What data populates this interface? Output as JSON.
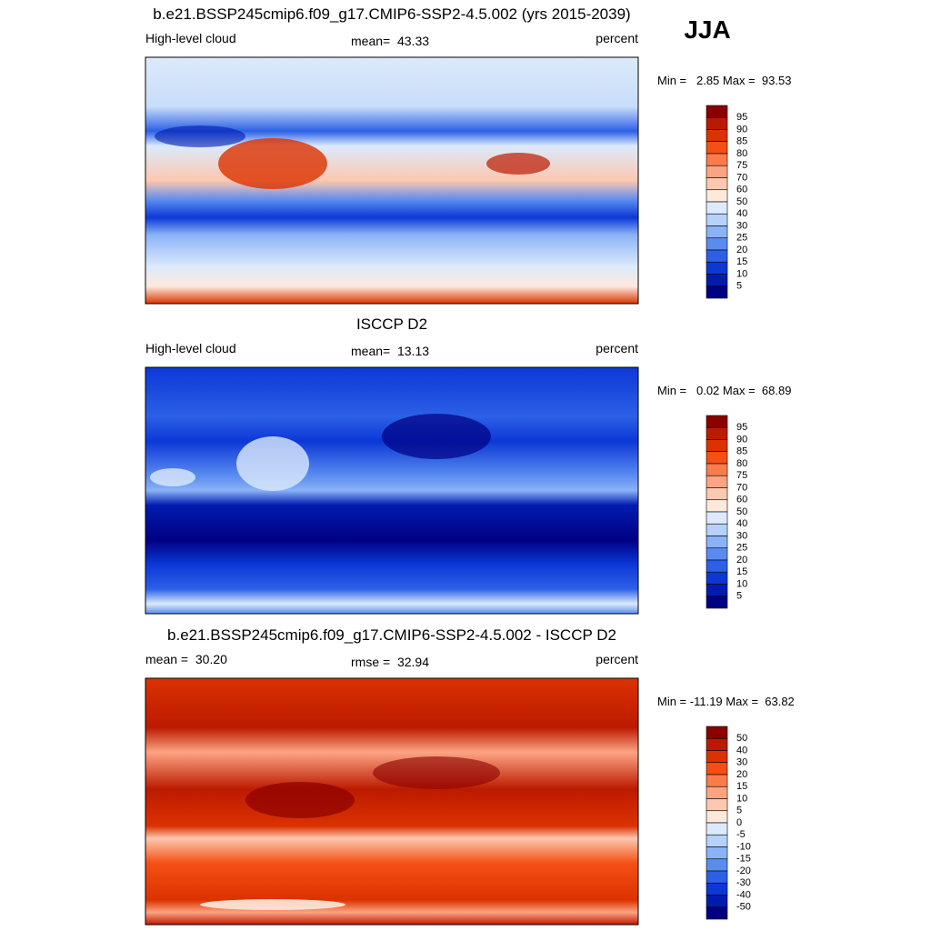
{
  "season": "JJA",
  "panels": [
    {
      "title": "b.e21.BSSP245cmip6.f09_g17.CMIP6-SSP2-4.5.002 (yrs 2015-2039)",
      "left": "High-level cloud",
      "center": "mean=  43.33",
      "right": "percent",
      "stats": "Min =   2.85 Max =  93.53",
      "colorbar": {
        "labels": [
          95,
          90,
          85,
          80,
          75,
          70,
          60,
          50,
          40,
          30,
          25,
          20,
          15,
          10,
          5
        ],
        "colors": [
          "#8c0000",
          "#bc1a00",
          "#dc3200",
          "#f45014",
          "#fa7c4c",
          "#fca482",
          "#fdc8b0",
          "#fde9dc",
          "#dceafb",
          "#b6d2fa",
          "#8ab2f6",
          "#5a8cf0",
          "#2c60e6",
          "#0c38d6",
          "#001cb0",
          "#000082"
        ]
      }
    },
    {
      "title": "ISCCP D2",
      "left": "High-level cloud",
      "center": "mean=  13.13",
      "right": "percent",
      "stats": "Min =   0.02 Max =  68.89",
      "colorbar": {
        "labels": [
          95,
          90,
          85,
          80,
          75,
          70,
          60,
          50,
          40,
          30,
          25,
          20,
          15,
          10,
          5
        ],
        "colors": [
          "#8c0000",
          "#bc1a00",
          "#dc3200",
          "#f45014",
          "#fa7c4c",
          "#fca482",
          "#fdc8b0",
          "#fde9dc",
          "#dceafb",
          "#b6d2fa",
          "#8ab2f6",
          "#5a8cf0",
          "#2c60e6",
          "#0c38d6",
          "#001cb0",
          "#000082"
        ]
      }
    },
    {
      "title": "b.e21.BSSP245cmip6.f09_g17.CMIP6-SSP2-4.5.002 - ISCCP D2",
      "left": "mean =  30.20",
      "center": "rmse =  32.94",
      "right": "percent",
      "stats": "Min = -11.19 Max =  63.82",
      "colorbar": {
        "labels": [
          50,
          40,
          30,
          20,
          15,
          10,
          5,
          0,
          -5,
          -10,
          -15,
          -20,
          -30,
          -40,
          -50
        ],
        "colors": [
          "#8c0000",
          "#bc1a00",
          "#dc3200",
          "#f45014",
          "#fa7c4c",
          "#fca482",
          "#fdc8b0",
          "#fde9dc",
          "#dceafb",
          "#b6d2fa",
          "#8ab2f6",
          "#5a8cf0",
          "#2c60e6",
          "#0c38d6",
          "#001cb0",
          "#000082"
        ]
      }
    }
  ]
}
